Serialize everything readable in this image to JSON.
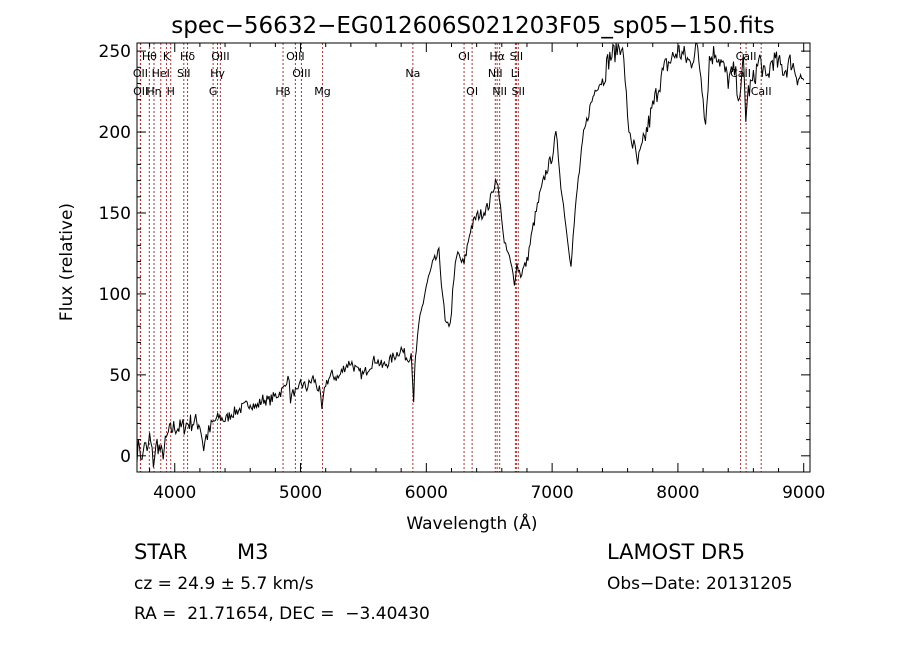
{
  "chart_data": {
    "type": "line",
    "title": "spec−56632−EG012606S021203F05_sp05−150.fits",
    "xlabel": "Wavelength (Å)",
    "ylabel": "Flux (relative)",
    "xlim": [
      3700,
      9050
    ],
    "ylim": [
      -10,
      255
    ],
    "x_ticks": [
      4000,
      5000,
      6000,
      7000,
      8000,
      9000
    ],
    "x_minor_step": 200,
    "y_ticks": [
      0,
      50,
      100,
      150,
      200,
      250
    ],
    "y_minor_step": 10,
    "grid": false,
    "line_color": "#000000",
    "marker_color": "#b03030",
    "series": [
      {
        "x": [
          3700,
          3720,
          3740,
          3760,
          3780,
          3800,
          3830,
          3860,
          3900,
          3950,
          4000,
          4050,
          4100,
          4150,
          4200,
          4230,
          4250,
          4280,
          4300,
          4350,
          4400,
          4450,
          4500,
          4550,
          4600,
          4650,
          4700,
          4750,
          4800,
          4850,
          4880,
          4900,
          4920,
          4950,
          4980,
          5000,
          5050,
          5100,
          5150,
          5170,
          5200,
          5250,
          5300,
          5350,
          5400,
          5450,
          5500,
          5550,
          5600,
          5650,
          5700,
          5750,
          5800,
          5850,
          5880,
          5900,
          5910,
          5920,
          5950,
          6000,
          6050,
          6100,
          6130,
          6150,
          6180,
          6200,
          6220,
          6250,
          6280,
          6300,
          6350,
          6400,
          6450,
          6500,
          6530,
          6560,
          6580,
          6600,
          6620,
          6650,
          6680,
          6700,
          6720,
          6750,
          6800,
          6850,
          6900,
          6950,
          7000,
          7030,
          7050,
          7080,
          7100,
          7120,
          7150,
          7200,
          7250,
          7300,
          7350,
          7400,
          7450,
          7500,
          7550,
          7580,
          7600,
          7620,
          7650,
          7680,
          7700,
          7750,
          7800,
          7850,
          7900,
          7950,
          8000,
          8050,
          8100,
          8150,
          8200,
          8220,
          8250,
          8300,
          8350,
          8400,
          8450,
          8480,
          8500,
          8520,
          8540,
          8560,
          8600,
          8650,
          8680,
          8700,
          8750,
          8800,
          8850,
          8900,
          8950,
          9000
        ],
        "y": [
          2,
          8,
          -5,
          10,
          0,
          12,
          -4,
          8,
          0,
          14,
          18,
          17,
          20,
          21,
          20,
          5,
          12,
          15,
          20,
          24,
          22,
          26,
          28,
          30,
          33,
          30,
          35,
          34,
          37,
          40,
          43,
          52,
          35,
          40,
          38,
          45,
          42,
          48,
          40,
          28,
          45,
          50,
          48,
          55,
          58,
          52,
          50,
          56,
          60,
          55,
          58,
          62,
          66,
          60,
          64,
          35,
          55,
          65,
          85,
          105,
          118,
          125,
          100,
          82,
          78,
          90,
          112,
          125,
          120,
          118,
          140,
          148,
          150,
          155,
          165,
          172,
          158,
          148,
          130,
          125,
          115,
          108,
          118,
          112,
          120,
          142,
          160,
          175,
          185,
          198,
          185,
          160,
          150,
          135,
          120,
          165,
          198,
          215,
          228,
          232,
          245,
          250,
          255,
          235,
          205,
          200,
          190,
          180,
          185,
          200,
          215,
          230,
          240,
          245,
          250,
          247,
          242,
          255,
          225,
          205,
          245,
          250,
          242,
          232,
          238,
          225,
          222,
          245,
          210,
          225,
          232,
          245,
          238,
          230,
          245,
          242,
          238,
          244,
          235,
          232
        ]
      }
    ],
    "lines": [
      {
        "name": "Hθ",
        "x": 3798,
        "row": 0
      },
      {
        "name": "K",
        "x": 3934,
        "row": 0
      },
      {
        "name": "Hδ",
        "x": 4102,
        "row": 0
      },
      {
        "name": "OIII",
        "x": 4363,
        "row": 0
      },
      {
        "name": "OIII",
        "x": 4959,
        "row": 0
      },
      {
        "name": "OI",
        "x": 6300,
        "row": 0
      },
      {
        "name": "Hα",
        "x": 6563,
        "row": 0
      },
      {
        "name": "SII",
        "x": 6716,
        "row": 0
      },
      {
        "name": "CaII",
        "x": 8542,
        "row": 0
      },
      {
        "name": "OII",
        "x": 3727,
        "row": 1
      },
      {
        "name": "HeI",
        "x": 3889,
        "row": 1
      },
      {
        "name": "SII",
        "x": 4072,
        "row": 1
      },
      {
        "name": "Hγ",
        "x": 4340,
        "row": 1
      },
      {
        "name": "OIII",
        "x": 5007,
        "row": 1
      },
      {
        "name": "Na",
        "x": 5893,
        "row": 1
      },
      {
        "name": "NII",
        "x": 6548,
        "row": 1
      },
      {
        "name": "Li",
        "x": 6708,
        "row": 1
      },
      {
        "name": "CaII",
        "x": 8498,
        "row": 1
      },
      {
        "name": "OII",
        "x": 3729,
        "row": 2
      },
      {
        "name": "Hη",
        "x": 3835,
        "row": 2
      },
      {
        "name": "H",
        "x": 3968,
        "row": 2
      },
      {
        "name": "G",
        "x": 4305,
        "row": 2
      },
      {
        "name": "Hβ",
        "x": 4861,
        "row": 2
      },
      {
        "name": "Mg",
        "x": 5175,
        "row": 2
      },
      {
        "name": "OI",
        "x": 6364,
        "row": 2
      },
      {
        "name": "NII",
        "x": 6583,
        "row": 2
      },
      {
        "name": "SII",
        "x": 6731,
        "row": 2
      },
      {
        "name": "CaII",
        "x": 8662,
        "row": 2
      }
    ]
  },
  "info": {
    "object_class": "STAR",
    "subclass": "M3",
    "survey": "LAMOST DR5",
    "cz": "cz = 24.9 ± 5.7 km/s",
    "obs_date": "Obs−Date: 20131205",
    "coords": "RA =  21.71654, DEC =  −3.40430"
  }
}
